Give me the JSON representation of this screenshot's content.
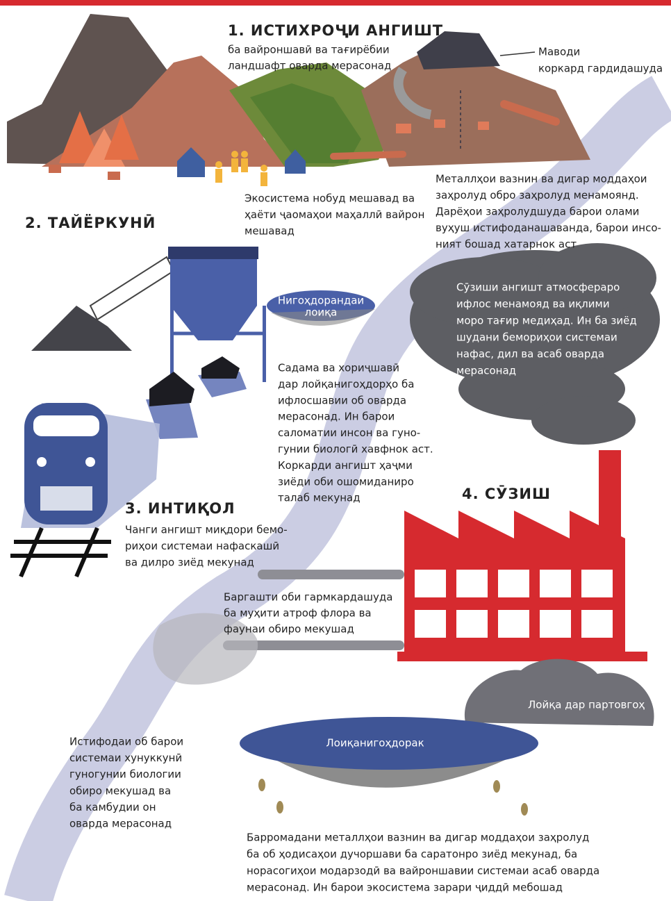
{
  "steps": [
    {
      "title": "1. ИСТИХРОҶИ АНГИШТ",
      "subtitle": [
        "ба вайроншавӣ ва тағирёбии",
        "ландшафт оварда мерасонад"
      ]
    },
    {
      "title": "2. ТАЙЁРКУНӢ"
    },
    {
      "title": "3. ИНТИҚОЛ",
      "subtitle": [
        "Чанги ангишт миқдори бемо-",
        "риҳои системаи нафаскашӣ",
        "ва дилро зиёд мекунад"
      ]
    },
    {
      "title": "4. СӮЗИШ"
    }
  ],
  "notes": {
    "processed_material": [
      "Маводи",
      "коркард гардидашуда"
    ],
    "ecosystem": [
      "Экосистема нобуд мешавад ва",
      "ҳаёти ҷаомаҳои маҳаллӣ вайрон",
      "мешавад"
    ],
    "heavy_metals": [
      "Металлҳои вазнин ва дигар моддаҳои",
      "заҳролуд обро заҳролуд менамоянд.",
      "Дарёҳои заҳролудшуда барои олами",
      "вуҳуш истифоданашаванда, барои инсо-",
      "ният бошад хатарнок аст"
    ],
    "sludge_storage": [
      "Нигоҳдорандаи",
      "лоиқа"
    ],
    "accidents": [
      "Садама ва хориҷшавӣ",
      "дар лойқанигоҳдорҳо ба",
      "ифлосшавии об оварда",
      "мерасонад. Ин барои",
      "саломатии инсон ва гуно-",
      "гунии биологӣ хавфнок аст.",
      "Коркарди ангишт ҳаҷми",
      "зиёди оби ошомиданиро",
      "талаб мекунад"
    ],
    "smoke": [
      "Сӯзиши ангишт атмосфераро",
      "ифлос менамояд ва иқлими",
      "моро тағир медиҳад. Ин ба зиёд",
      "шудани бемориҳои системаи",
      "нафас, дил ва асаб оварда",
      "мерасонад"
    ],
    "warm_water": [
      "Баргашти оби гармкардашуда",
      "ба муҳити атроф флора ва",
      "фаунаи обиро мекушад"
    ],
    "landfill": [
      "Лойқа дар партовгоҳ"
    ],
    "pond": [
      "Лоиқанигоҳдорак"
    ],
    "water_use": [
      "Истифодаи об барои",
      "системаи хунуккунӣ",
      "гуногунии биологии",
      "обиро мекушад ва",
      "ба камбудии он",
      "оварда мерасонад"
    ],
    "toxic_release": [
      "Барромадани металлҳои вазнин ва дигар моддаҳои заҳролуд",
      "ба об ҳодисаҳои дучоршави ба саратонро зиёд мекунад, ба",
      "норасогиҳои модарзодӣ ва вайроншавии системаи асаб оварда",
      "мерасонад. Ин барои экосистема зарари ҷиддӣ мебошад"
    ]
  }
}
